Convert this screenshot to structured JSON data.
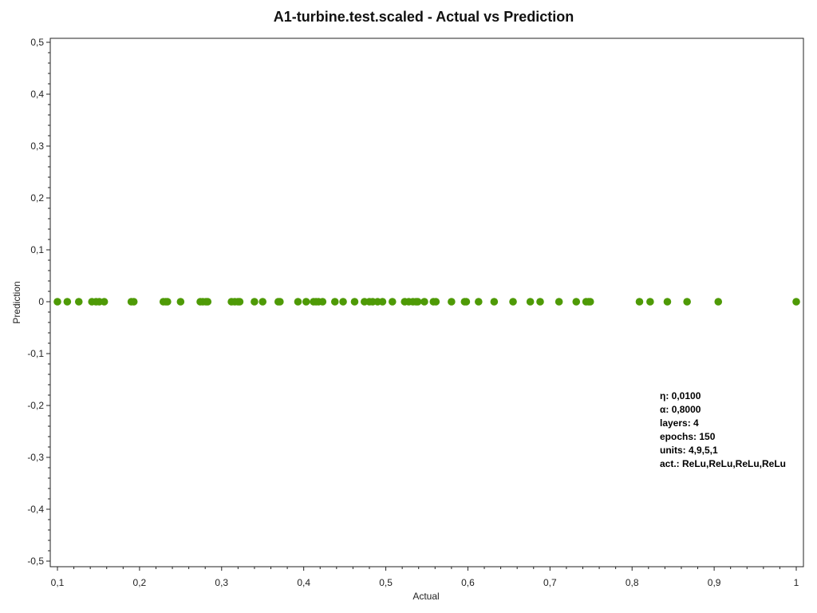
{
  "chart_data": {
    "type": "scatter",
    "title": "A1-turbine.test.scaled - Actual vs Prediction",
    "xlabel": "Actual",
    "ylabel": "Prediction",
    "xlim": [
      0.1,
      1.0
    ],
    "ylim": [
      -0.5,
      0.5
    ],
    "xticks": [
      "0,1",
      "0,2",
      "0,3",
      "0,4",
      "0,5",
      "0,6",
      "0,7",
      "0,8",
      "0,9",
      "1"
    ],
    "yticks": [
      "0,5",
      "0,4",
      "0,3",
      "0,2",
      "0,1",
      "0",
      "-0,1",
      "-0,2",
      "-0,3",
      "-0,4",
      "-0,5"
    ],
    "grid": false,
    "point_color": "#4e9a06",
    "series": [
      {
        "x": [
          0.1,
          0.112,
          0.126,
          0.142,
          0.147,
          0.151,
          0.157,
          0.19,
          0.193,
          0.229,
          0.232,
          0.234,
          0.25,
          0.274,
          0.277,
          0.281,
          0.283,
          0.312,
          0.316,
          0.32,
          0.322,
          0.34,
          0.35,
          0.369,
          0.371,
          0.393,
          0.403,
          0.412,
          0.415,
          0.418,
          0.423,
          0.438,
          0.448,
          0.462,
          0.474,
          0.48,
          0.484,
          0.49,
          0.496,
          0.508,
          0.523,
          0.528,
          0.533,
          0.537,
          0.539,
          0.547,
          0.558,
          0.561,
          0.58,
          0.596,
          0.598,
          0.613,
          0.632,
          0.655,
          0.676,
          0.688,
          0.711,
          0.732,
          0.744,
          0.747,
          0.749,
          0.809,
          0.822,
          0.843,
          0.867,
          0.905,
          1.0
        ],
        "y": [
          0,
          0,
          0,
          0,
          0,
          0,
          0,
          0,
          0,
          0,
          0,
          0,
          0,
          0,
          0,
          0,
          0,
          0,
          0,
          0,
          0,
          0,
          0,
          0,
          0,
          0,
          0,
          0,
          0,
          0,
          0,
          0,
          0,
          0,
          0,
          0,
          0,
          0,
          0,
          0,
          0,
          0,
          0,
          0,
          0,
          0,
          0,
          0,
          0,
          0,
          0,
          0,
          0,
          0,
          0,
          0,
          0,
          0,
          0,
          0,
          0,
          0,
          0,
          0,
          0,
          0,
          0
        ]
      }
    ],
    "annotations": [
      "η: 0,0100",
      "α: 0,8000",
      "layers: 4",
      "epochs: 150",
      "units: 4,9,5,1",
      "act.: ReLu,ReLu,ReLu,ReLu"
    ]
  }
}
